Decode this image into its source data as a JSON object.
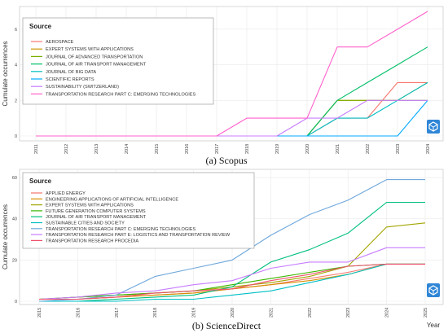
{
  "chart_data": [
    {
      "type": "line",
      "caption": "(a) Scopus",
      "ylabel": "Cumulate occurrences",
      "xlabel": "",
      "legend_title": "Source",
      "legend_position": "top-left",
      "grid": true,
      "x": [
        2011,
        2012,
        2013,
        2014,
        2015,
        2016,
        2017,
        2018,
        2019,
        2020,
        2021,
        2022,
        2023,
        2024
      ],
      "y_ticks": [
        0,
        2,
        4,
        6
      ],
      "ylim": [
        0,
        7
      ],
      "series": [
        {
          "name": "AEROSPACE",
          "color": "#f8766d",
          "values": [
            0,
            0,
            0,
            0,
            0,
            0,
            0,
            0,
            0,
            0,
            1,
            1,
            3,
            3
          ]
        },
        {
          "name": "EXPERT SYSTEMS WITH APPLICATIONS",
          "color": "#cd9600",
          "values": [
            0,
            0,
            0,
            0,
            0,
            0,
            0,
            0,
            0,
            0,
            2,
            2,
            2,
            3
          ]
        },
        {
          "name": "JOURNAL OF ADVANCED TRANSPORTATION",
          "color": "#7cae00",
          "values": [
            0,
            0,
            0,
            0,
            0,
            0,
            0,
            0,
            0,
            0,
            2,
            2,
            2,
            2
          ]
        },
        {
          "name": "JOURNAL OF AIR TRANSPORT MANAGEMENT",
          "color": "#00be67",
          "values": [
            0,
            0,
            0,
            0,
            0,
            0,
            0,
            0,
            0,
            0,
            2,
            3,
            4,
            5
          ]
        },
        {
          "name": "JOURNAL OF BIG DATA",
          "color": "#00bfc4",
          "values": [
            0,
            0,
            0,
            0,
            0,
            0,
            0,
            0,
            0,
            0,
            1,
            1,
            2,
            3
          ]
        },
        {
          "name": "SCIENTIFIC REPORTS",
          "color": "#00a9ff",
          "values": [
            0,
            0,
            0,
            0,
            0,
            0,
            0,
            0,
            0,
            0,
            0,
            0,
            0,
            2
          ]
        },
        {
          "name": "SUSTAINABILITY (SWITZERLAND)",
          "color": "#c77cff",
          "values": [
            0,
            0,
            0,
            0,
            0,
            0,
            0,
            0,
            0,
            1,
            1,
            2,
            2,
            2
          ]
        },
        {
          "name": "TRANSPORTATION RESEARCH PART C: EMERGING TECHNOLOGIES",
          "color": "#ff61cc",
          "values": [
            0,
            0,
            0,
            0,
            0,
            0,
            0,
            1,
            1,
            1,
            5,
            5,
            6,
            7
          ]
        }
      ]
    },
    {
      "type": "line",
      "caption": "(b) ScienceDirect",
      "ylabel": "Cumulate occurrences",
      "xlabel": "Year",
      "legend_title": "Source",
      "legend_position": "top-left",
      "grid": true,
      "x": [
        2015,
        2016,
        2017,
        2018,
        2019,
        2020,
        2021,
        2022,
        2023,
        2024,
        2025
      ],
      "y_ticks": [
        0,
        20,
        40,
        60
      ],
      "ylim": [
        0,
        62
      ],
      "series": [
        {
          "name": "APPLIED ENERGY",
          "color": "#f8766d",
          "values": [
            1,
            1,
            2,
            3,
            4,
            6,
            8,
            11,
            14,
            18,
            18
          ]
        },
        {
          "name": "ENGINEERING APPLICATIONS OF ARTIFICIAL INTELLIGENCE",
          "color": "#d89000",
          "values": [
            1,
            1,
            2,
            3,
            4,
            6,
            8,
            10,
            13,
            18,
            18
          ]
        },
        {
          "name": "EXPERT SYSTEMS WITH APPLICATIONS",
          "color": "#a3a500",
          "values": [
            1,
            2,
            3,
            4,
            5,
            7,
            9,
            12,
            17,
            36,
            38
          ]
        },
        {
          "name": "FUTURE GENERATION COMPUTER SYSTEMS",
          "color": "#39b600",
          "values": [
            1,
            2,
            3,
            4,
            5,
            8,
            11,
            14,
            17,
            18,
            18
          ]
        },
        {
          "name": "JOURNAL OF AIR TRANSPORT MANAGEMENT",
          "color": "#00bf7d",
          "values": [
            0,
            0,
            1,
            2,
            3,
            7,
            19,
            25,
            33,
            48,
            48
          ]
        },
        {
          "name": "SUSTAINABLE CITIES AND SOCIETY",
          "color": "#00bfc4",
          "values": [
            0,
            0,
            0,
            1,
            1,
            3,
            5,
            9,
            13,
            18,
            18
          ]
        },
        {
          "name": "TRANSPORTATION RESEARCH PART C: EMERGING TECHNOLOGIES",
          "color": "#6fa8dc",
          "values": [
            0,
            1,
            3,
            12,
            16,
            20,
            32,
            42,
            49,
            59,
            59
          ]
        },
        {
          "name": "TRANSPORTATION RESEARCH PART E: LOGISTICS AND TRANSPORTATION REVIEW",
          "color": "#c77cff",
          "values": [
            1,
            2,
            4,
            5,
            8,
            10,
            16,
            19,
            19,
            26,
            26
          ]
        },
        {
          "name": "TRANSPORTATION RESEARCH PROCEDIA",
          "color": "#f0506e",
          "values": [
            1,
            1,
            2,
            4,
            5,
            6,
            10,
            13,
            17,
            18,
            18
          ]
        }
      ]
    }
  ]
}
